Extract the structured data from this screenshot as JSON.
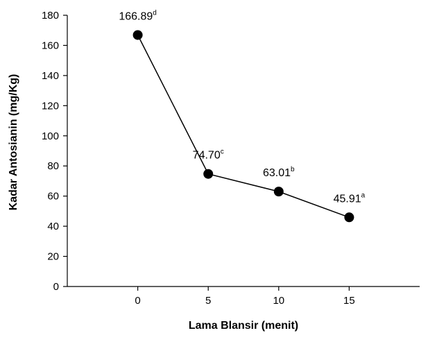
{
  "chart_data": {
    "type": "line",
    "xlabel": "Lama Blansir (menit)",
    "ylabel": "Kadar Antosianin (mg/Kg)",
    "x": [
      0,
      5,
      10,
      15
    ],
    "xticks": [
      "0",
      "5",
      "10",
      "15"
    ],
    "xlim": [
      -5,
      20
    ],
    "ylim": [
      0,
      180
    ],
    "yticks": [
      "0",
      "20",
      "40",
      "60",
      "80",
      "100",
      "120",
      "140",
      "160",
      "180"
    ],
    "grid": false,
    "series": [
      {
        "values": [
          166.89,
          74.7,
          63.01,
          45.91
        ],
        "labels": [
          "166.89",
          "74.70",
          "63.01",
          "45.91"
        ],
        "superscripts": [
          "d",
          "c",
          "b",
          "a"
        ],
        "marker": "circle",
        "color": "#000000"
      }
    ]
  }
}
